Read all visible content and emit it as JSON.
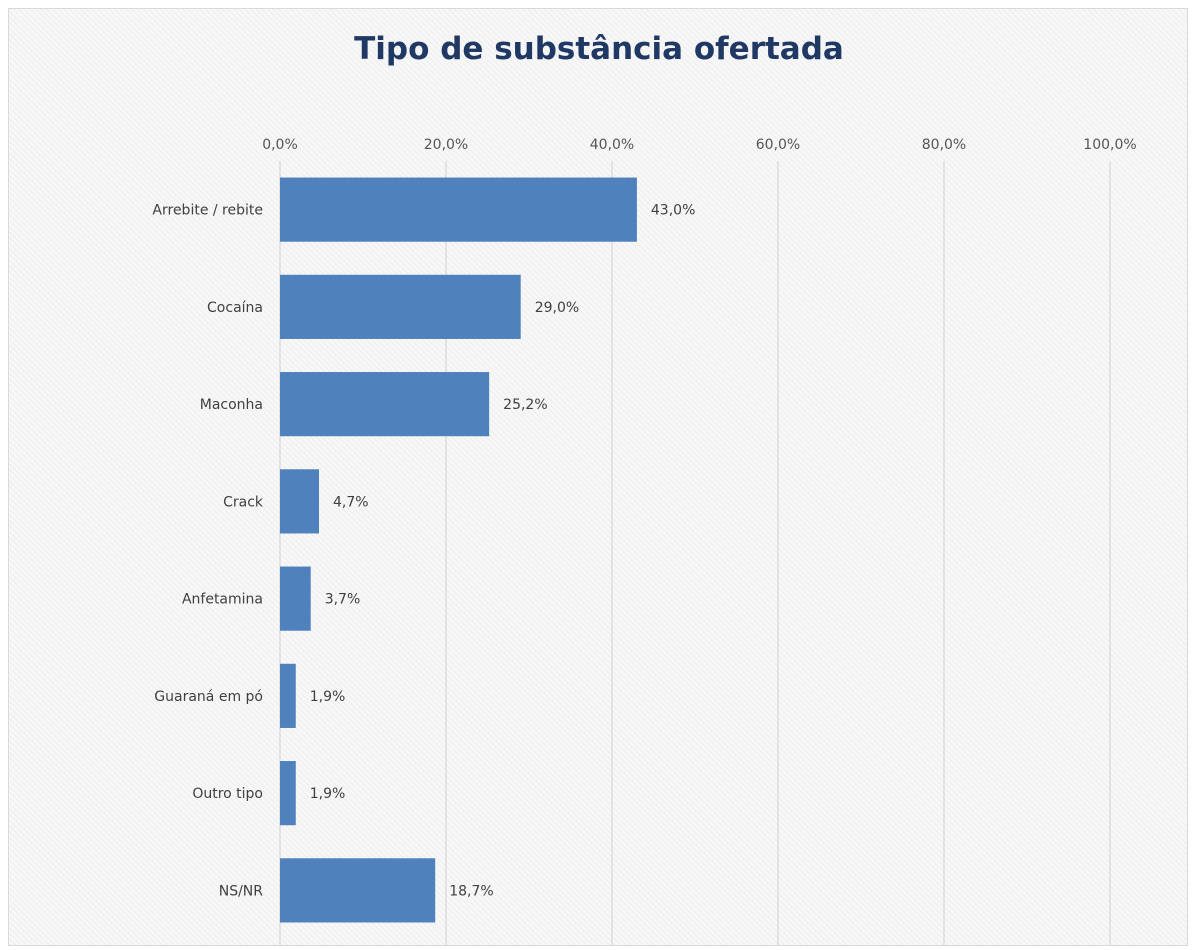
{
  "chart_data": {
    "type": "bar",
    "orientation": "horizontal",
    "title": "Tipo de substância ofertada",
    "categories": [
      "Arrebite / rebite",
      "Cocaína",
      "Maconha",
      "Crack",
      "Anfetamina",
      "Guaraná em pó",
      "Outro tipo",
      "NS/NR"
    ],
    "values": [
      43.0,
      29.0,
      25.2,
      4.7,
      3.7,
      1.9,
      1.9,
      18.7
    ],
    "data_labels": [
      "43,0%",
      "29,0%",
      "25,2%",
      "4,7%",
      "3,7%",
      "1,9%",
      "1,9%",
      "18,7%"
    ],
    "xlim": [
      0,
      100
    ],
    "ticks": [
      0,
      20,
      40,
      60,
      80,
      100
    ],
    "tick_labels": [
      "0,0%",
      "20,0%",
      "40,0%",
      "60,0%",
      "80,0%",
      "100,0%"
    ],
    "axis_position": "top",
    "grid": true,
    "legend": "none",
    "bar_color": "#4f81bd"
  }
}
